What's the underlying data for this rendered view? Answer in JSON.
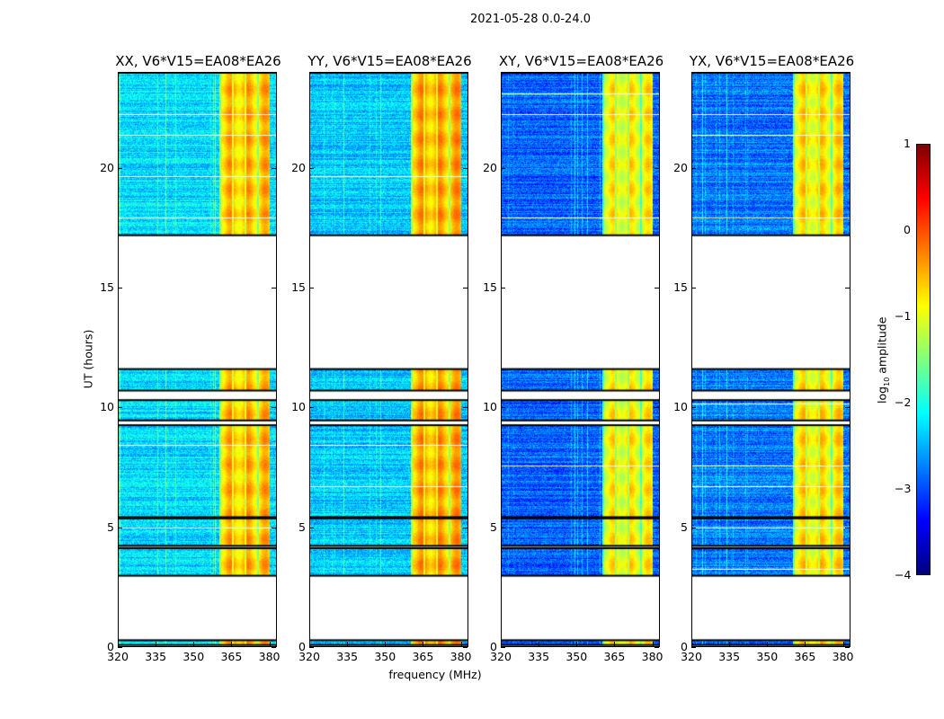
{
  "chart_data": {
    "type": "heatmap",
    "title": "2021-05-28 0.0-24.0",
    "xlabel": "frequency (MHz)",
    "ylabel": "UT (hours)",
    "xlim": [
      320,
      383
    ],
    "ylim": [
      0,
      24
    ],
    "xticks": [
      320,
      335,
      350,
      365,
      380
    ],
    "yticks": [
      0,
      5,
      10,
      15,
      20
    ],
    "panels": [
      {
        "title": "XX, V6*V15=EA08*EA26",
        "background_log_amp": -2.3,
        "band_log_amp": -0.6
      },
      {
        "title": "YY, V6*V15=EA08*EA26",
        "background_log_amp": -2.4,
        "band_log_amp": -0.5
      },
      {
        "title": "XY, V6*V15=EA08*EA26",
        "background_log_amp": -2.9,
        "band_log_amp": -0.9
      },
      {
        "title": "YX, V6*V15=EA08*EA26",
        "background_log_amp": -2.8,
        "band_log_amp": -0.8
      }
    ],
    "bright_band_mhz": [
      360.5,
      380.5
    ],
    "data_segments_hours": [
      [
        0.05,
        0.25
      ],
      [
        2.95,
        4.1
      ],
      [
        4.2,
        5.35
      ],
      [
        5.4,
        9.25
      ],
      [
        9.45,
        10.3
      ],
      [
        10.7,
        11.6
      ],
      [
        17.2,
        24
      ]
    ],
    "colorbar": {
      "label": "log10 amplitude",
      "label_main": "log",
      "label_sub": "10",
      "label_rest": " amplitude",
      "range": [
        -4,
        1
      ],
      "ticks": [
        "1",
        "0",
        "−1",
        "−2",
        "−3",
        "−4"
      ],
      "colormap": "jet"
    }
  }
}
